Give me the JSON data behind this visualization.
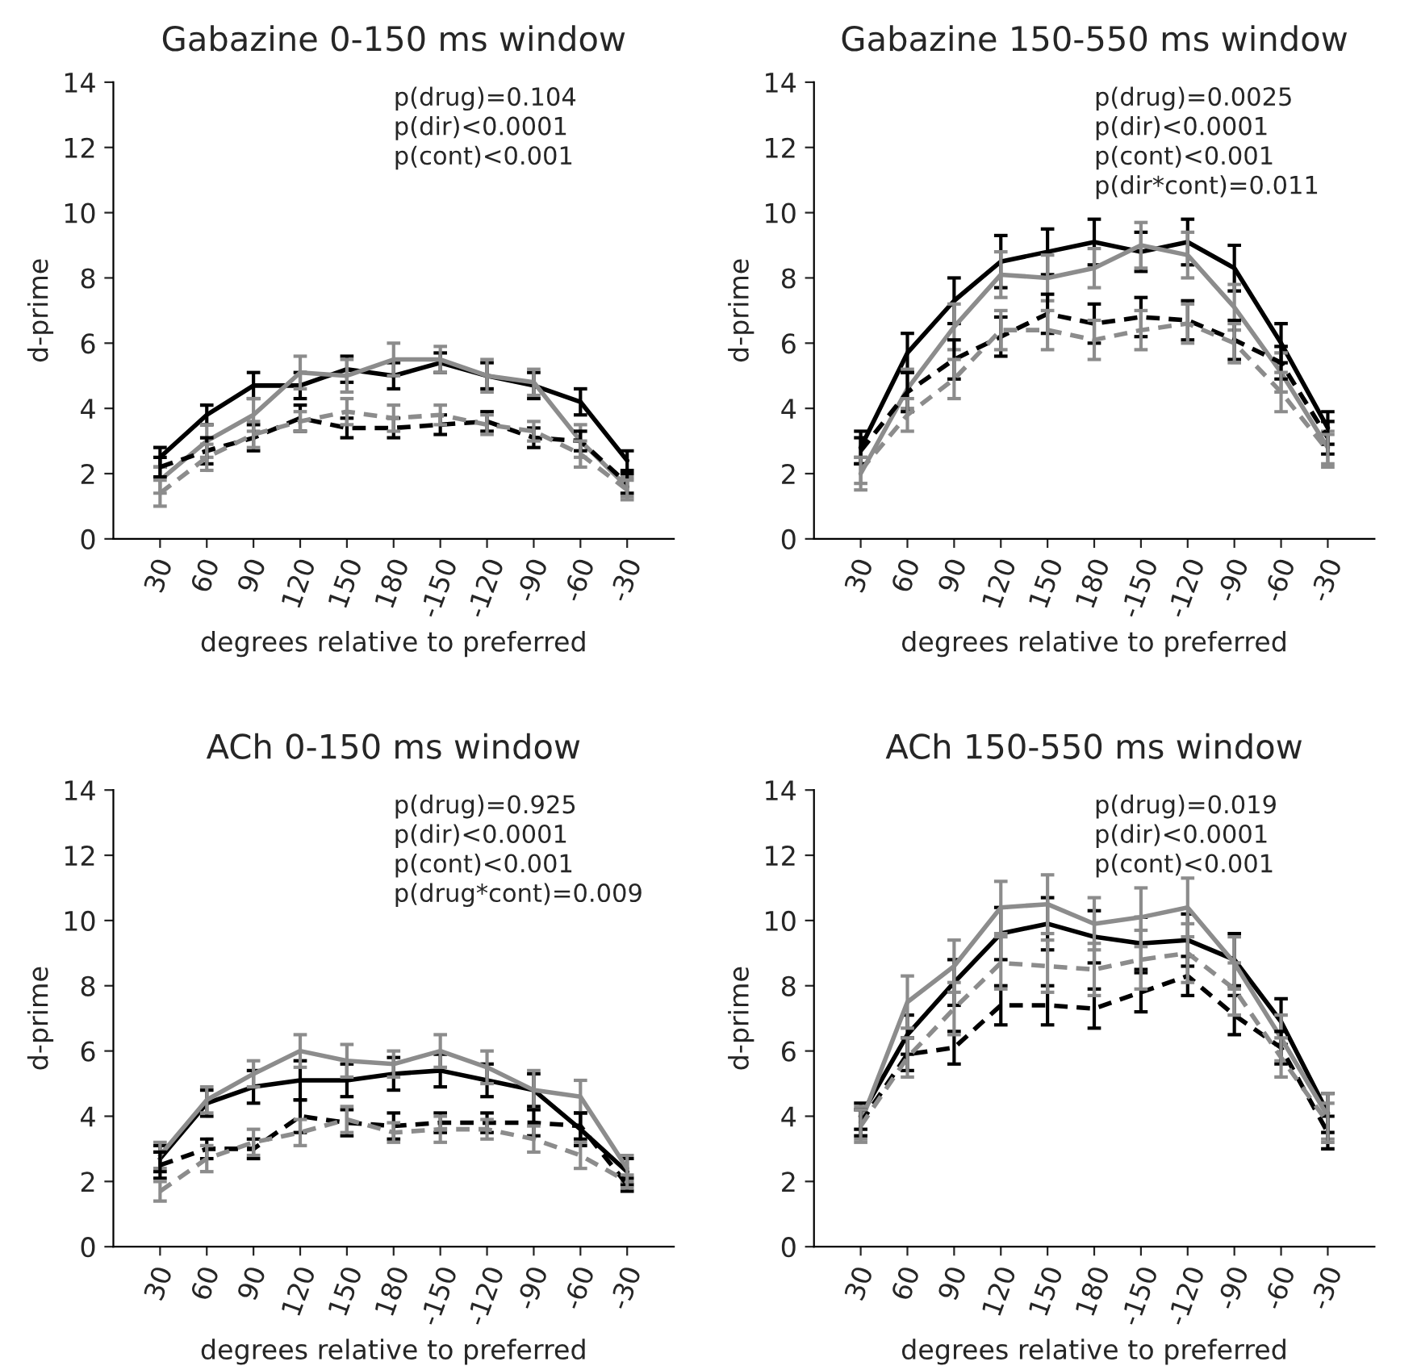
{
  "chart_data": [
    {
      "type": "line",
      "title": "Gabazine 0-150 ms window",
      "xlabel": "degrees relative to preferred",
      "ylabel": "d-prime",
      "categories": [
        "30",
        "60",
        "90",
        "120",
        "150",
        "180",
        "-150",
        "-120",
        "-90",
        "-60",
        "-30"
      ],
      "ylim": [
        0,
        14
      ],
      "yticks": [
        0,
        2,
        4,
        6,
        8,
        10,
        12,
        14
      ],
      "grid": false,
      "legend": false,
      "marker": "none",
      "annotations": [
        "p(drug)=0.104",
        "p(dir)<0.0001",
        "p(cont)<0.001"
      ],
      "series": [
        {
          "color": "#000000",
          "line_style": "solid",
          "values": [
            2.5,
            3.8,
            4.7,
            4.7,
            5.2,
            5.0,
            5.4,
            5.0,
            4.7,
            4.2,
            2.4
          ],
          "errors": [
            0.3,
            0.3,
            0.4,
            0.4,
            0.4,
            0.4,
            0.3,
            0.4,
            0.4,
            0.4,
            0.3
          ]
        },
        {
          "color": "#8c8c8c",
          "line_style": "solid",
          "values": [
            1.8,
            3.0,
            3.8,
            5.1,
            5.0,
            5.5,
            5.5,
            5.0,
            4.8,
            3.0,
            1.6
          ],
          "errors": [
            0.4,
            0.5,
            0.5,
            0.5,
            0.5,
            0.5,
            0.4,
            0.5,
            0.4,
            0.5,
            0.3
          ]
        },
        {
          "color": "#000000",
          "line_style": "dashed",
          "values": [
            2.2,
            2.7,
            3.1,
            3.7,
            3.4,
            3.4,
            3.5,
            3.6,
            3.1,
            3.0,
            1.7
          ],
          "errors": [
            0.3,
            0.4,
            0.4,
            0.4,
            0.3,
            0.3,
            0.3,
            0.3,
            0.3,
            0.3,
            0.3
          ]
        },
        {
          "color": "#8c8c8c",
          "line_style": "dashed",
          "values": [
            1.4,
            2.5,
            3.2,
            3.6,
            3.9,
            3.7,
            3.8,
            3.5,
            3.3,
            2.6,
            1.5
          ],
          "errors": [
            0.4,
            0.4,
            0.4,
            0.3,
            0.4,
            0.4,
            0.3,
            0.3,
            0.3,
            0.4,
            0.3
          ]
        }
      ]
    },
    {
      "type": "line",
      "title": "Gabazine 150-550 ms window",
      "xlabel": "degrees relative to preferred",
      "ylabel": "d-prime",
      "categories": [
        "30",
        "60",
        "90",
        "120",
        "150",
        "180",
        "-150",
        "-120",
        "-90",
        "-60",
        "-30"
      ],
      "ylim": [
        0,
        14
      ],
      "yticks": [
        0,
        2,
        4,
        6,
        8,
        10,
        12,
        14
      ],
      "grid": false,
      "legend": false,
      "marker": "none",
      "annotations": [
        "p(drug)=0.0025",
        "p(dir)<0.0001",
        "p(cont)<0.001",
        "p(dir*cont)=0.011"
      ],
      "series": [
        {
          "color": "#000000",
          "line_style": "solid",
          "values": [
            2.8,
            5.7,
            7.3,
            8.5,
            8.8,
            9.1,
            8.8,
            9.1,
            8.3,
            6.0,
            3.4
          ],
          "errors": [
            0.5,
            0.6,
            0.7,
            0.8,
            0.7,
            0.7,
            0.6,
            0.7,
            0.7,
            0.6,
            0.5
          ]
        },
        {
          "color": "#8c8c8c",
          "line_style": "solid",
          "values": [
            2.0,
            4.6,
            6.5,
            8.1,
            8.0,
            8.3,
            9.0,
            8.7,
            7.1,
            5.1,
            2.8
          ],
          "errors": [
            0.5,
            0.6,
            0.7,
            0.7,
            0.7,
            0.6,
            0.7,
            0.7,
            0.7,
            0.6,
            0.5
          ]
        },
        {
          "color": "#000000",
          "line_style": "dashed",
          "values": [
            2.7,
            4.5,
            5.5,
            6.2,
            6.9,
            6.6,
            6.8,
            6.7,
            6.1,
            5.4,
            3.1
          ],
          "errors": [
            0.4,
            0.6,
            0.6,
            0.6,
            0.6,
            0.6,
            0.6,
            0.6,
            0.6,
            0.5,
            0.5
          ]
        },
        {
          "color": "#8c8c8c",
          "line_style": "dashed",
          "values": [
            2.1,
            3.8,
            4.9,
            6.4,
            6.4,
            6.1,
            6.4,
            6.6,
            6.0,
            4.5,
            2.7
          ],
          "errors": [
            0.4,
            0.5,
            0.6,
            0.6,
            0.6,
            0.6,
            0.6,
            0.6,
            0.6,
            0.6,
            0.5
          ]
        }
      ]
    },
    {
      "type": "line",
      "title": "ACh 0-150 ms window",
      "xlabel": "degrees relative to preferred",
      "ylabel": "d-prime",
      "categories": [
        "30",
        "60",
        "90",
        "120",
        "150",
        "180",
        "-150",
        "-120",
        "-90",
        "-60",
        "-30"
      ],
      "ylim": [
        0,
        14
      ],
      "yticks": [
        0,
        2,
        4,
        6,
        8,
        10,
        12,
        14
      ],
      "grid": false,
      "legend": false,
      "marker": "none",
      "annotations": [
        "p(drug)=0.925",
        "p(dir)<0.0001",
        "p(cont)<0.001",
        "p(drug*cont)=0.009"
      ],
      "series": [
        {
          "color": "#000000",
          "line_style": "solid",
          "values": [
            2.7,
            4.4,
            4.9,
            5.1,
            5.1,
            5.3,
            5.4,
            5.1,
            4.8,
            3.6,
            2.3
          ],
          "errors": [
            0.4,
            0.4,
            0.5,
            0.6,
            0.5,
            0.5,
            0.5,
            0.5,
            0.5,
            0.5,
            0.4
          ]
        },
        {
          "color": "#8c8c8c",
          "line_style": "solid",
          "values": [
            2.8,
            4.5,
            5.3,
            6.0,
            5.7,
            5.6,
            6.0,
            5.5,
            4.8,
            4.6,
            2.4
          ],
          "errors": [
            0.4,
            0.4,
            0.4,
            0.5,
            0.5,
            0.4,
            0.5,
            0.5,
            0.6,
            0.5,
            0.4
          ]
        },
        {
          "color": "#000000",
          "line_style": "dashed",
          "values": [
            2.5,
            3.0,
            3.0,
            4.0,
            3.8,
            3.7,
            3.8,
            3.8,
            3.8,
            3.7,
            1.9
          ],
          "errors": [
            0.4,
            0.3,
            0.3,
            0.5,
            0.4,
            0.4,
            0.3,
            0.3,
            0.4,
            0.4,
            0.2
          ]
        },
        {
          "color": "#8c8c8c",
          "line_style": "dashed",
          "values": [
            1.7,
            2.7,
            3.2,
            3.5,
            3.9,
            3.5,
            3.6,
            3.6,
            3.3,
            2.8,
            2.0
          ],
          "errors": [
            0.3,
            0.4,
            0.4,
            0.4,
            0.4,
            0.3,
            0.4,
            0.3,
            0.4,
            0.4,
            0.2
          ]
        }
      ]
    },
    {
      "type": "line",
      "title": "ACh 150-550 ms window",
      "xlabel": "degrees relative to preferred",
      "ylabel": "d-prime",
      "categories": [
        "30",
        "60",
        "90",
        "120",
        "150",
        "180",
        "-150",
        "-120",
        "-90",
        "-60",
        "-30"
      ],
      "ylim": [
        0,
        14
      ],
      "yticks": [
        0,
        2,
        4,
        6,
        8,
        10,
        12,
        14
      ],
      "grid": false,
      "legend": false,
      "marker": "none",
      "annotations": [
        "p(drug)=0.019",
        "p(dir)<0.0001",
        "p(cont)<0.001"
      ],
      "series": [
        {
          "color": "#000000",
          "line_style": "solid",
          "values": [
            4.0,
            6.5,
            8.1,
            9.6,
            9.9,
            9.5,
            9.3,
            9.4,
            8.8,
            6.9,
            4.1
          ],
          "errors": [
            0.4,
            0.6,
            0.7,
            0.8,
            0.8,
            0.8,
            0.8,
            0.8,
            0.8,
            0.7,
            0.6
          ]
        },
        {
          "color": "#8c8c8c",
          "line_style": "solid",
          "values": [
            3.8,
            7.5,
            8.6,
            10.4,
            10.5,
            9.9,
            10.1,
            10.4,
            8.7,
            6.4,
            4.0
          ],
          "errors": [
            0.5,
            0.8,
            0.8,
            0.8,
            0.9,
            0.8,
            0.9,
            0.9,
            0.8,
            0.7,
            0.7
          ]
        },
        {
          "color": "#000000",
          "line_style": "dashed",
          "values": [
            3.8,
            5.9,
            6.1,
            7.4,
            7.4,
            7.3,
            7.8,
            8.3,
            7.1,
            6.1,
            3.5
          ],
          "errors": [
            0.4,
            0.5,
            0.5,
            0.6,
            0.6,
            0.6,
            0.6,
            0.6,
            0.6,
            0.5,
            0.5
          ]
        },
        {
          "color": "#8c8c8c",
          "line_style": "dashed",
          "values": [
            3.7,
            5.8,
            7.3,
            8.7,
            8.6,
            8.5,
            8.8,
            9.0,
            7.9,
            5.8,
            3.8
          ],
          "errors": [
            0.5,
            0.6,
            0.8,
            0.8,
            0.8,
            0.8,
            0.9,
            0.9,
            0.8,
            0.6,
            0.6
          ]
        }
      ]
    }
  ]
}
